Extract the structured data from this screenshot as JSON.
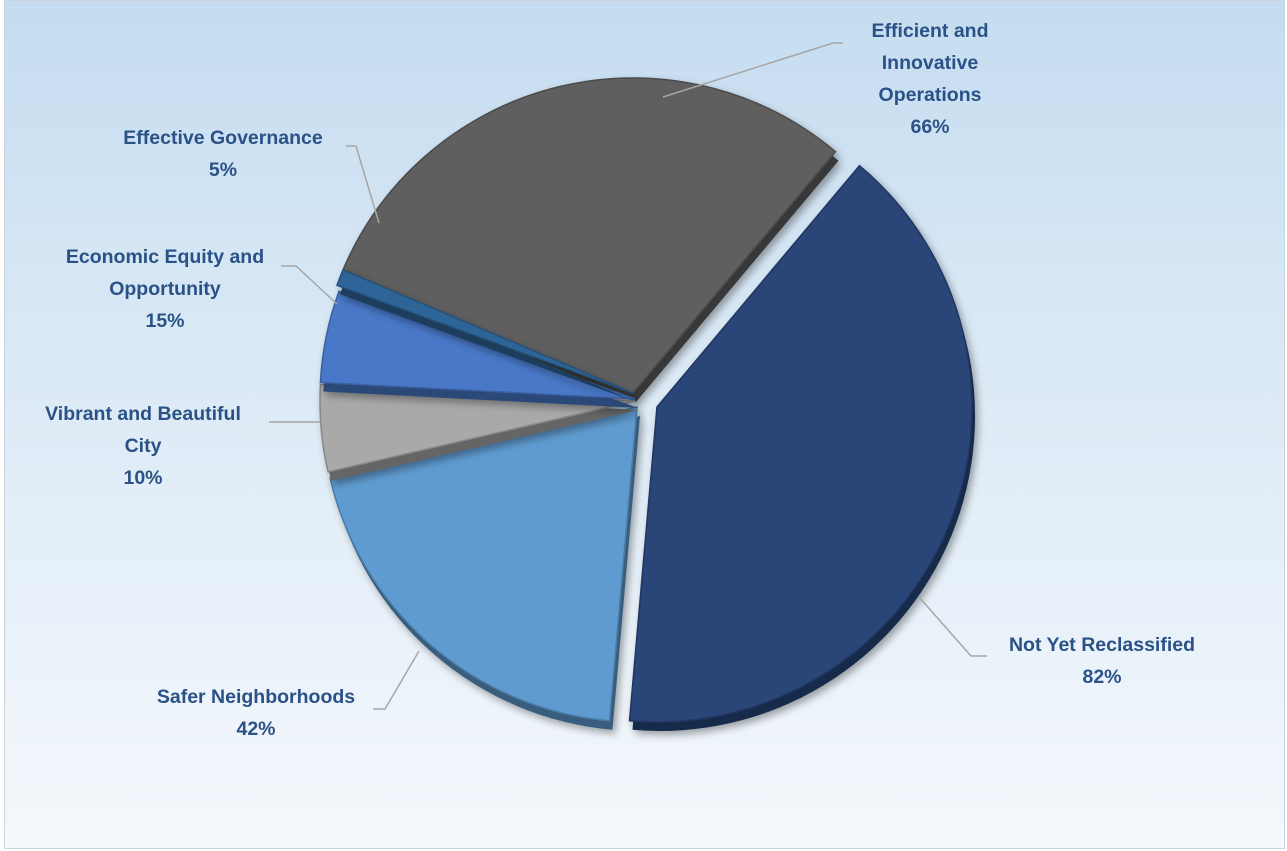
{
  "chart_data": {
    "type": "pie",
    "title": "",
    "slices": [
      {
        "label": "Efficient and Innovative Operations",
        "label_lines": [
          "Efficient and",
          "Innovative",
          "Operations"
        ],
        "value_text": "66%",
        "color": "#5f5f5f"
      },
      {
        "label": "Not Yet Reclassified",
        "label_lines": [
          "Not Yet Reclassified"
        ],
        "value_text": "82%",
        "color": "#2a4478"
      },
      {
        "label": "Safer Neighborhoods",
        "label_lines": [
          "Safer Neighborhoods"
        ],
        "value_text": "42%",
        "color": "#5e9bd0"
      },
      {
        "label": "Vibrant and Beautiful City",
        "label_lines": [
          "Vibrant and Beautiful",
          "City"
        ],
        "value_text": "10%",
        "color": "#a9a9a9"
      },
      {
        "label": "Economic Equity and Opportunity",
        "label_lines": [
          "Economic Equity and",
          "Opportunity"
        ],
        "value_text": "15%",
        "color": "#4a78c8"
      },
      {
        "label": "Effective Governance",
        "label_lines": [
          "Effective Governance"
        ],
        "value_text": "5%",
        "color": "#2f6598"
      }
    ]
  },
  "colors": {
    "label_text": "#2a5286",
    "leader_line": "#a6a6a6"
  }
}
